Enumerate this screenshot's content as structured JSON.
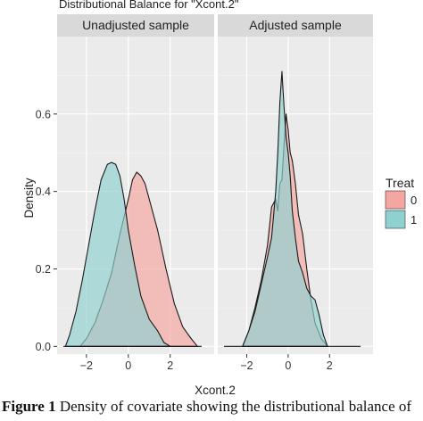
{
  "chart_data": {
    "type": "area",
    "title": "Distributional Balance for \"Xcont.2\"",
    "xlabel": "Xcont.2",
    "ylabel": "Density",
    "xlim": [
      -3.4,
      4.1
    ],
    "ylim": [
      -0.02,
      0.8
    ],
    "x_ticks": [
      -2,
      0,
      2
    ],
    "x_tick_labels": [
      "−2",
      "0",
      "2"
    ],
    "y_ticks": [
      0.0,
      0.2,
      0.4,
      0.6
    ],
    "y_tick_labels": [
      "0.0",
      "0.2",
      "0.4",
      "0.6"
    ],
    "grid": true,
    "legend": {
      "title": "Treat",
      "position": "right",
      "entries": [
        "0",
        "1"
      ]
    },
    "series_colors": {
      "0": "#f4a6a0",
      "1": "#8fd0d0"
    },
    "facets": [
      {
        "label": "Unadjusted sample",
        "series": [
          {
            "name": "0",
            "x": [
              -2.3,
              -2.0,
              -1.6,
              -1.2,
              -0.8,
              -0.4,
              0.0,
              0.2,
              0.4,
              0.6,
              0.8,
              1.0,
              1.4,
              1.8,
              2.2,
              2.6,
              3.0,
              3.3
            ],
            "y": [
              0.0,
              0.02,
              0.06,
              0.12,
              0.19,
              0.29,
              0.38,
              0.43,
              0.45,
              0.44,
              0.42,
              0.38,
              0.3,
              0.2,
              0.11,
              0.05,
              0.02,
              0.0
            ]
          },
          {
            "name": "1",
            "x": [
              -3.0,
              -2.8,
              -2.5,
              -2.2,
              -1.9,
              -1.6,
              -1.3,
              -1.0,
              -0.8,
              -0.6,
              -0.4,
              -0.2,
              0.0,
              0.3,
              0.6,
              1.0,
              1.4,
              1.7,
              2.0
            ],
            "y": [
              0.0,
              0.03,
              0.09,
              0.17,
              0.26,
              0.35,
              0.43,
              0.47,
              0.475,
              0.47,
              0.44,
              0.38,
              0.3,
              0.21,
              0.13,
              0.07,
              0.04,
              0.01,
              0.0
            ]
          }
        ]
      },
      {
        "label": "Adjusted sample",
        "series": [
          {
            "name": "0",
            "x": [
              -2.2,
              -1.9,
              -1.6,
              -1.3,
              -1.0,
              -0.8,
              -0.6,
              -0.5,
              -0.4,
              -0.3,
              -0.2,
              -0.1,
              0.0,
              0.1,
              0.2,
              0.35,
              0.5,
              0.7,
              0.9,
              1.1,
              1.3,
              1.6,
              1.9
            ],
            "y": [
              0.0,
              0.04,
              0.1,
              0.17,
              0.26,
              0.36,
              0.38,
              0.35,
              0.42,
              0.43,
              0.52,
              0.6,
              0.56,
              0.5,
              0.48,
              0.42,
              0.34,
              0.29,
              0.2,
              0.12,
              0.06,
              0.02,
              0.0
            ]
          },
          {
            "name": "1",
            "x": [
              -2.2,
              -1.9,
              -1.6,
              -1.3,
              -1.0,
              -0.8,
              -0.6,
              -0.5,
              -0.4,
              -0.3,
              -0.2,
              -0.1,
              0.0,
              0.1,
              0.2,
              0.35,
              0.5,
              0.7,
              0.9,
              1.1,
              1.3,
              1.5,
              1.7,
              1.9
            ],
            "y": [
              0.0,
              0.04,
              0.09,
              0.16,
              0.23,
              0.28,
              0.4,
              0.5,
              0.63,
              0.71,
              0.62,
              0.54,
              0.5,
              0.44,
              0.35,
              0.28,
              0.22,
              0.19,
              0.15,
              0.13,
              0.12,
              0.08,
              0.03,
              0.0
            ]
          }
        ]
      }
    ]
  },
  "caption": {
    "label": "Figure 1",
    "text": "  Density of covariate showing the distributional balance of"
  }
}
